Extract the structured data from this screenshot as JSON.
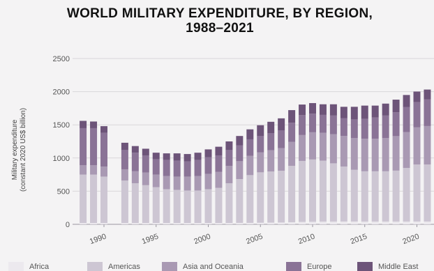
{
  "chart_data": {
    "type": "bar",
    "stacked": true,
    "title": "WORLD MILITARY EXPENDITURE, BY REGION,",
    "title_line2": "1988–2021",
    "ylabel": "Military expenditure",
    "ylabel_line2": "(constant 2020 US$ billion)",
    "xlabel": "",
    "ylim": [
      0,
      2500
    ],
    "yticks": [
      0,
      500,
      1000,
      1500,
      2000,
      2500
    ],
    "xticks": [
      1990,
      1995,
      2000,
      2005,
      2010,
      2015,
      2020
    ],
    "grid": true,
    "legend_position": "bottom",
    "x": [
      1988,
      1989,
      1990,
      1992,
      1993,
      1994,
      1995,
      1996,
      1997,
      1998,
      1999,
      2000,
      2001,
      2002,
      2003,
      2004,
      2005,
      2006,
      2007,
      2008,
      2009,
      2010,
      2011,
      2012,
      2013,
      2014,
      2015,
      2016,
      2017,
      2018,
      2019,
      2020,
      2021
    ],
    "series": [
      {
        "name": "Africa",
        "color": "#ece9ee",
        "values": [
          20,
          20,
          20,
          20,
          20,
          20,
          20,
          20,
          20,
          20,
          20,
          20,
          20,
          20,
          22,
          22,
          24,
          26,
          28,
          32,
          36,
          38,
          40,
          40,
          42,
          42,
          40,
          40,
          40,
          40,
          40,
          42,
          42
        ]
      },
      {
        "name": "Americas",
        "color": "#cdc6d3",
        "values": [
          730,
          730,
          700,
          640,
          600,
          570,
          540,
          510,
          500,
          490,
          490,
          510,
          530,
          600,
          660,
          720,
          760,
          770,
          780,
          850,
          920,
          940,
          920,
          880,
          830,
          780,
          760,
          760,
          760,
          770,
          810,
          860,
          860
        ]
      },
      {
        "name": "Asia and Oceania",
        "color": "#a999b3",
        "values": [
          140,
          140,
          150,
          170,
          180,
          190,
          190,
          200,
          200,
          210,
          220,
          230,
          240,
          260,
          270,
          290,
          300,
          320,
          340,
          360,
          390,
          410,
          420,
          440,
          460,
          480,
          490,
          490,
          500,
          520,
          540,
          560,
          580
        ]
      },
      {
        "name": "Europe",
        "color": "#8a7396",
        "values": [
          560,
          560,
          510,
          290,
          280,
          260,
          230,
          240,
          240,
          230,
          240,
          250,
          250,
          240,
          240,
          250,
          250,
          260,
          270,
          290,
          300,
          280,
          270,
          280,
          270,
          280,
          300,
          320,
          340,
          360,
          380,
          380,
          400
        ]
      },
      {
        "name": "Middle East",
        "color": "#6d5479",
        "values": [
          110,
          100,
          100,
          110,
          100,
          100,
          100,
          100,
          110,
          110,
          110,
          120,
          130,
          130,
          140,
          150,
          160,
          170,
          180,
          190,
          160,
          160,
          160,
          170,
          170,
          190,
          200,
          180,
          180,
          190,
          180,
          160,
          150
        ]
      }
    ]
  }
}
